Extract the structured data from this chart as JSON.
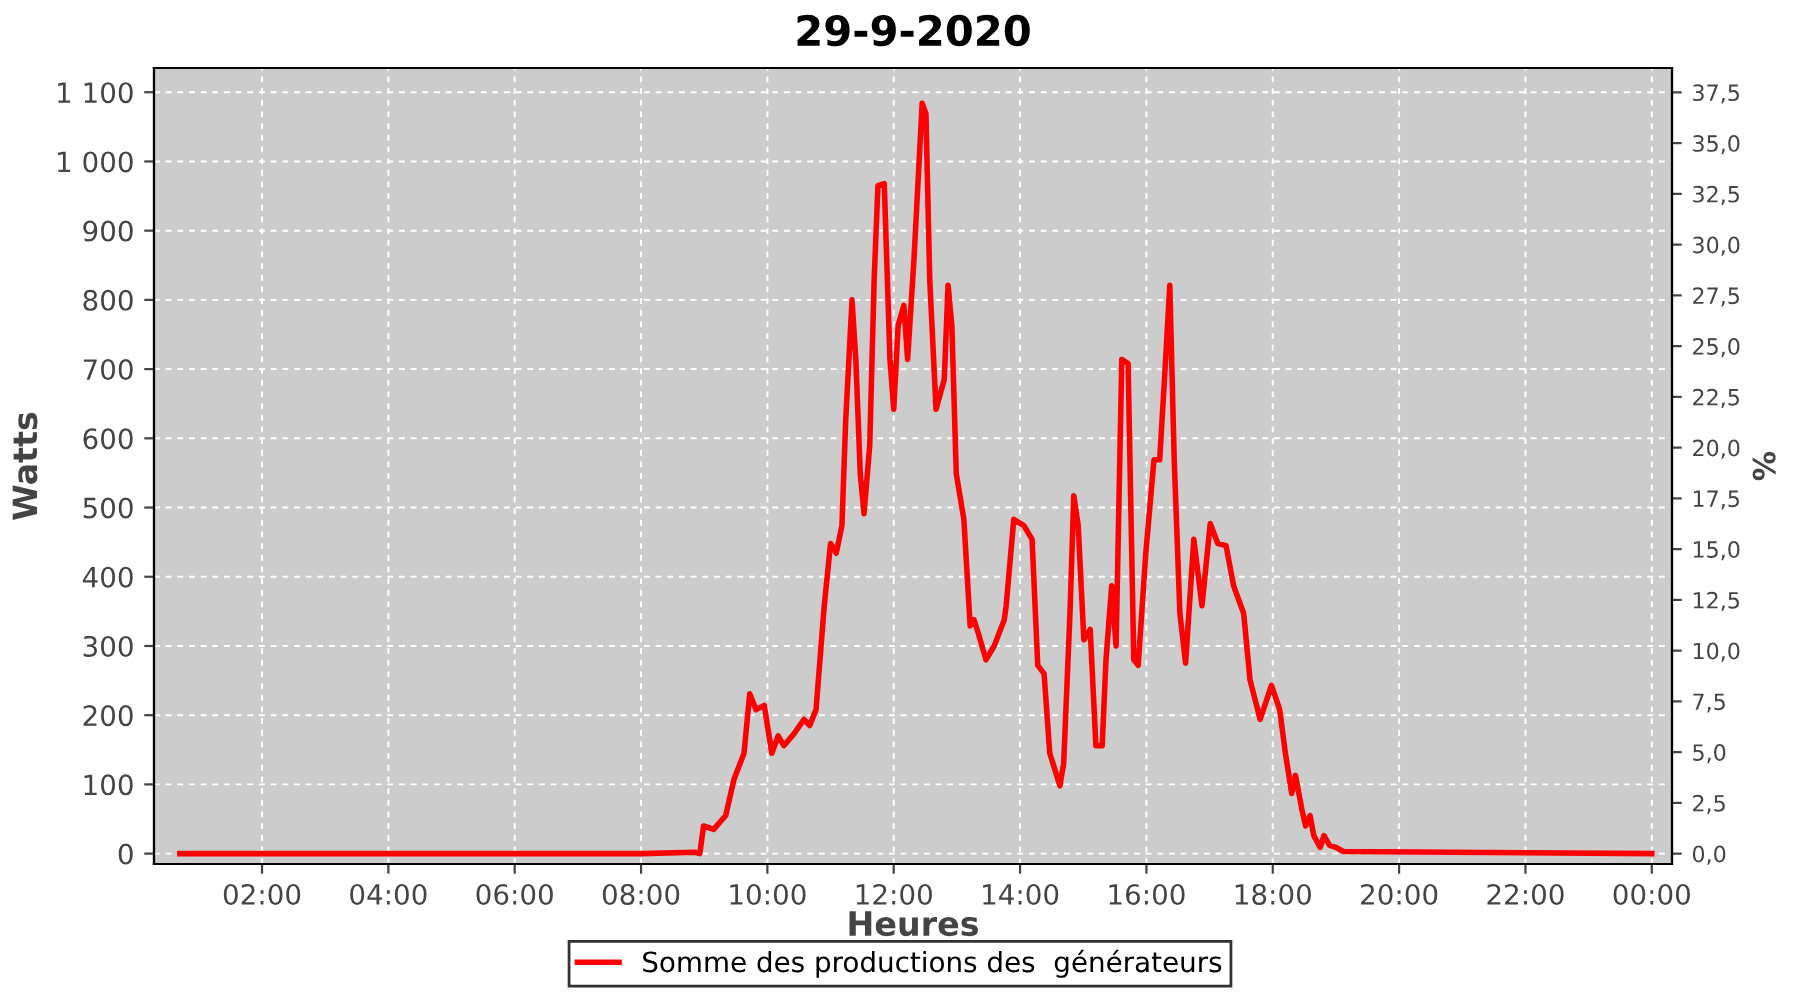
{
  "chart_data": {
    "type": "line",
    "title": "29-9-2020",
    "xlabel": "Heures",
    "ylabel": "Watts",
    "y2label": "%",
    "x": [
      0.7,
      8.0,
      8.85,
      8.93,
      8.99,
      9.15,
      9.34,
      9.47,
      9.63,
      9.72,
      9.82,
      9.95,
      10.07,
      10.17,
      10.26,
      10.42,
      10.58,
      10.67,
      10.77,
      10.9,
      11.0,
      11.09,
      11.18,
      11.24,
      11.34,
      11.4,
      11.47,
      11.53,
      11.62,
      11.69,
      11.75,
      11.85,
      11.94,
      12.0,
      12.07,
      12.16,
      12.22,
      12.32,
      12.45,
      12.51,
      12.57,
      12.67,
      12.8,
      12.86,
      12.92,
      12.99,
      13.11,
      13.21,
      13.27,
      13.34,
      13.46,
      13.59,
      13.75,
      13.78,
      13.9,
      14.06,
      14.19,
      14.28,
      14.38,
      14.47,
      14.63,
      14.69,
      14.79,
      14.85,
      14.92,
      15.01,
      15.11,
      15.2,
      15.3,
      15.36,
      15.45,
      15.52,
      15.61,
      15.71,
      15.8,
      15.87,
      15.99,
      16.12,
      16.21,
      16.28,
      16.37,
      16.44,
      16.53,
      16.62,
      16.75,
      16.88,
      17.01,
      17.13,
      17.26,
      17.38,
      17.54,
      17.64,
      17.8,
      17.98,
      18.11,
      18.2,
      18.3,
      18.36,
      18.46,
      18.52,
      18.59,
      18.65,
      18.75,
      18.81,
      18.9,
      19.0,
      19.12,
      24.0
    ],
    "series": [
      {
        "name": "Somme des productions des  générateurs",
        "color": "#ff0000",
        "values": [
          0,
          0,
          2,
          0,
          40,
          35,
          55,
          107,
          145,
          231,
          208,
          214,
          145,
          170,
          156,
          173,
          194,
          185,
          208,
          358,
          448,
          434,
          474,
          627,
          800,
          714,
          549,
          491,
          590,
          829,
          965,
          968,
          714,
          642,
          763,
          792,
          714,
          858,
          1084,
          1069,
          829,
          642,
          685,
          821,
          763,
          549,
          483,
          329,
          338,
          318,
          280,
          300,
          338,
          358,
          483,
          474,
          454,
          272,
          260,
          145,
          98,
          130,
          347,
          517,
          474,
          309,
          324,
          156,
          156,
          280,
          387,
          300,
          714,
          708,
          280,
          272,
          434,
          569,
          569,
          676,
          821,
          569,
          347,
          275,
          454,
          358,
          477,
          448,
          445,
          387,
          347,
          251,
          194,
          243,
          208,
          145,
          87,
          113,
          64,
          40,
          55,
          26,
          9,
          26,
          12,
          9,
          3,
          0
        ]
      }
    ],
    "xlim": [
      0.29,
      24.32
    ],
    "xticks": [
      {
        "value": 2,
        "label": "02:00"
      },
      {
        "value": 4,
        "label": "04:00"
      },
      {
        "value": 6,
        "label": "06:00"
      },
      {
        "value": 8,
        "label": "08:00"
      },
      {
        "value": 10,
        "label": "10:00"
      },
      {
        "value": 12,
        "label": "12:00"
      },
      {
        "value": 14,
        "label": "14:00"
      },
      {
        "value": 16,
        "label": "16:00"
      },
      {
        "value": 18,
        "label": "18:00"
      },
      {
        "value": 20,
        "label": "20:00"
      },
      {
        "value": 22,
        "label": "22:00"
      },
      {
        "value": 24,
        "label": "00:00"
      }
    ],
    "ylim": [
      -15,
      1135
    ],
    "yticks": [
      0,
      100,
      200,
      300,
      400,
      500,
      600,
      700,
      800,
      900,
      {
        "value": 1000,
        "label": "1 000"
      },
      {
        "value": 1100,
        "label": "1 100"
      }
    ],
    "y2lim": [
      -0.51,
      38.7
    ],
    "y2ticks": [
      {
        "value": 0,
        "label": "0,0"
      },
      {
        "value": 2.5,
        "label": "2,5"
      },
      {
        "value": 5,
        "label": "5,0"
      },
      {
        "value": 7.5,
        "label": "7,5"
      },
      {
        "value": 10,
        "label": "10,0"
      },
      {
        "value": 12.5,
        "label": "12,5"
      },
      {
        "value": 15,
        "label": "15,0"
      },
      {
        "value": 17.5,
        "label": "17,5"
      },
      {
        "value": 20,
        "label": "20,0"
      },
      {
        "value": 22.5,
        "label": "22,5"
      },
      {
        "value": 25,
        "label": "25,0"
      },
      {
        "value": 27.5,
        "label": "27,5"
      },
      {
        "value": 30,
        "label": "30,0"
      },
      {
        "value": 32.5,
        "label": "32,5"
      },
      {
        "value": 35,
        "label": "35,0"
      },
      {
        "value": 37.5,
        "label": "37,5"
      }
    ],
    "grid": true,
    "legend": "bottom",
    "line_style": "solid"
  }
}
